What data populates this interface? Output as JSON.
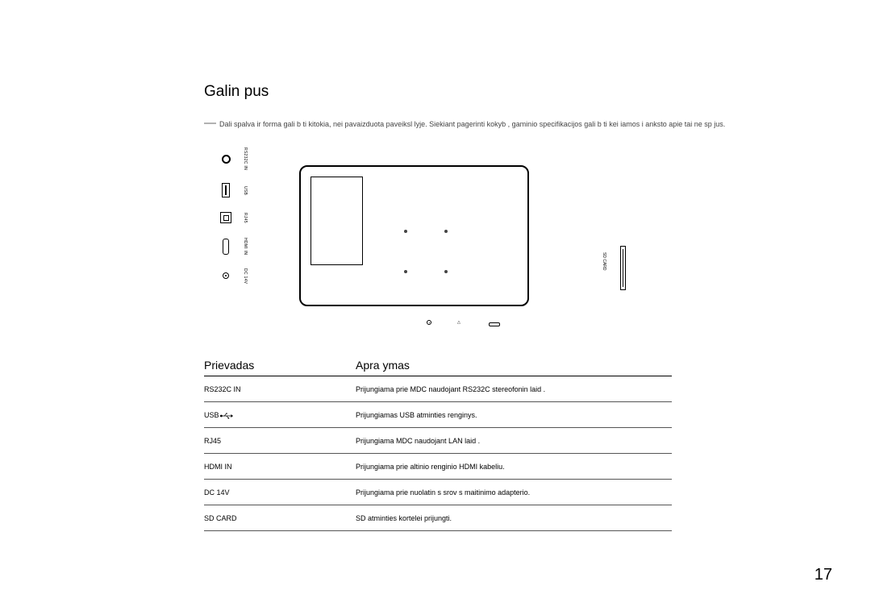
{
  "title": "Galin  pus",
  "note_dash": "―",
  "note_text": "Dali  spalva ir forma gali b ti kitokia, nei pavaizduota paveiksl lyje. Siekiant pagerinti kokyb , gaminio specifikacijos gali b ti kei iamos i  anksto apie tai ne sp jus.",
  "diagram": {
    "ports": [
      {
        "label": "RS232C IN"
      },
      {
        "label": "USB"
      },
      {
        "label": "RJ45"
      },
      {
        "label": "HDMI IN"
      },
      {
        "label": "DC 14V"
      }
    ],
    "sd_label": "SD CARD"
  },
  "table": {
    "header_col1": "Prievadas",
    "header_col2": "Apra ymas",
    "rows": [
      {
        "port": "RS232C IN",
        "desc": "Prijungiama prie MDC naudojant RS232C stereofonin  laid .",
        "usb_icon": false
      },
      {
        "port": "USB",
        "desc": "Prijungiamas USB atminties  renginys.",
        "usb_icon": true
      },
      {
        "port": "RJ45",
        "desc": "Prijungiama MDC naudojant LAN laid .",
        "usb_icon": false
      },
      {
        "port": "HDMI IN",
        "desc": "Prijungiama prie  altinio  renginio HDMI kabeliu.",
        "usb_icon": false
      },
      {
        "port": "DC 14V",
        "desc": "Prijungiama prie nuolatin s srov s maitinimo adapterio.",
        "usb_icon": false
      },
      {
        "port": "SD CARD",
        "desc": "SD atminties kortelei prijungti.",
        "usb_icon": false
      }
    ]
  },
  "page_number": "17",
  "colors": {
    "background": "#ffffff",
    "text": "#000000",
    "note_text": "#444444",
    "border": "#000000",
    "row_border": "#555555"
  }
}
